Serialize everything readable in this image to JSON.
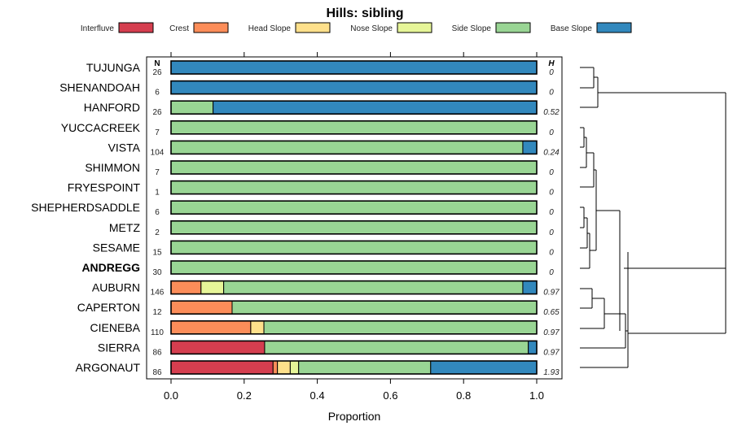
{
  "chart_data": {
    "type": "bar",
    "stacked": true,
    "orientation": "horizontal",
    "title": "Hills: sibling",
    "xlabel": "Proportion",
    "ylabel": "",
    "xlim": [
      0,
      1
    ],
    "xticks": [
      "0.0",
      "0.2",
      "0.4",
      "0.6",
      "0.8",
      "1.0"
    ],
    "xtick_values": [
      0,
      0.2,
      0.4,
      0.6,
      0.8,
      1.0
    ],
    "n_header": "N",
    "h_header": "H",
    "legend_position": "top",
    "series": [
      {
        "name": "Interfluve",
        "color": "#d53e4f"
      },
      {
        "name": "Crest",
        "color": "#fc8d59"
      },
      {
        "name": "Head Slope",
        "color": "#fee08b"
      },
      {
        "name": "Nose Slope",
        "color": "#e6f598"
      },
      {
        "name": "Side Slope",
        "color": "#99d594"
      },
      {
        "name": "Base Slope",
        "color": "#3288bd"
      }
    ],
    "rows": [
      {
        "label": "TUJUNGA",
        "bold": false,
        "n": "26",
        "h": "0",
        "values": [
          0,
          0,
          0,
          0,
          0,
          1.0
        ]
      },
      {
        "label": "SHENANDOAH",
        "bold": false,
        "n": "6",
        "h": "0",
        "values": [
          0,
          0,
          0,
          0,
          0,
          1.0
        ]
      },
      {
        "label": "HANFORD",
        "bold": false,
        "n": "26",
        "h": "0.52",
        "values": [
          0,
          0,
          0,
          0,
          0.115,
          0.885
        ]
      },
      {
        "label": "YUCCACREEK",
        "bold": false,
        "n": "7",
        "h": "0",
        "values": [
          0,
          0,
          0,
          0,
          1.0,
          0
        ]
      },
      {
        "label": "VISTA",
        "bold": false,
        "n": "104",
        "h": "0.24",
        "values": [
          0,
          0,
          0,
          0,
          0.962,
          0.038
        ]
      },
      {
        "label": "SHIMMON",
        "bold": false,
        "n": "7",
        "h": "0",
        "values": [
          0,
          0,
          0,
          0,
          1.0,
          0
        ]
      },
      {
        "label": "FRYESPOINT",
        "bold": false,
        "n": "1",
        "h": "0",
        "values": [
          0,
          0,
          0,
          0,
          1.0,
          0
        ]
      },
      {
        "label": "SHEPHERDSADDLE",
        "bold": false,
        "n": "6",
        "h": "0",
        "values": [
          0,
          0,
          0,
          0,
          1.0,
          0
        ]
      },
      {
        "label": "METZ",
        "bold": false,
        "n": "2",
        "h": "0",
        "values": [
          0,
          0,
          0,
          0,
          1.0,
          0
        ]
      },
      {
        "label": "SESAME",
        "bold": false,
        "n": "15",
        "h": "0",
        "values": [
          0,
          0,
          0,
          0,
          1.0,
          0
        ]
      },
      {
        "label": "ANDREGG",
        "bold": true,
        "n": "30",
        "h": "0",
        "values": [
          0,
          0,
          0,
          0,
          1.0,
          0
        ]
      },
      {
        "label": "AUBURN",
        "bold": false,
        "n": "146",
        "h": "0.97",
        "values": [
          0,
          0.082,
          0,
          0.062,
          0.818,
          0.038
        ]
      },
      {
        "label": "CAPERTON",
        "bold": false,
        "n": "12",
        "h": "0.65",
        "values": [
          0,
          0.167,
          0,
          0,
          0.833,
          0
        ]
      },
      {
        "label": "CIENEBA",
        "bold": false,
        "n": "110",
        "h": "0.97",
        "values": [
          0,
          0.218,
          0.036,
          0,
          0.746,
          0
        ]
      },
      {
        "label": "SIERRA",
        "bold": false,
        "n": "86",
        "h": "0.97",
        "values": [
          0.256,
          0,
          0,
          0,
          0.721,
          0.023
        ]
      },
      {
        "label": "ARGONAUT",
        "bold": false,
        "n": "86",
        "h": "1.93",
        "values": [
          0.279,
          0.012,
          0.035,
          0.023,
          0.361,
          0.29
        ]
      }
    ]
  }
}
